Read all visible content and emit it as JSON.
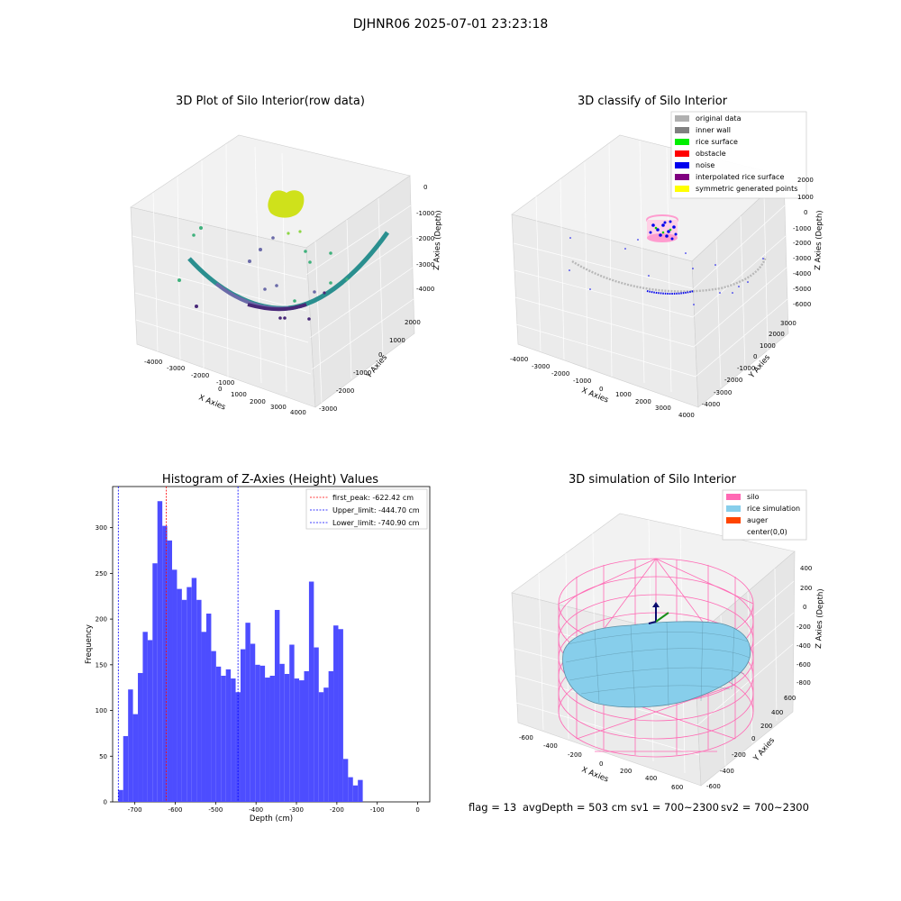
{
  "figure": {
    "suptitle": "DJHNR06 2025-07-01 23:23:18",
    "footer": {
      "flag": "flag = 13",
      "avg_depth": "avgDepth = 503 cm",
      "sv1": "sv1 = 700~2300",
      "sv2": "sv2 = 700~2300"
    }
  },
  "panels": {
    "raw": {
      "title": "3D Plot of Silo Interior(row data)",
      "xlabel": "X Axies",
      "ylabel": "Y Axies",
      "zlabel": "Z Axies (Depth)",
      "xticks": [
        "-4000",
        "-3000",
        "-2000",
        "-1000",
        "0",
        "1000",
        "2000",
        "3000",
        "4000"
      ],
      "yticks": [
        "-3000",
        "-2000",
        "-1000",
        "0",
        "1000",
        "2000"
      ],
      "zticks": [
        "0",
        "-1000",
        "-2000",
        "-3000",
        "-4000"
      ],
      "colors": {
        "arc": "#2a8f8f",
        "bottom": "#482878",
        "top": "#cfe11b"
      }
    },
    "classify": {
      "title": "3D classify of Silo Interior",
      "xlabel": "X Axies",
      "ylabel": "Y Axies",
      "zlabel": "Z Axies (Depth)",
      "xticks": [
        "-4000",
        "-3000",
        "-2000",
        "-1000",
        "0",
        "1000",
        "2000",
        "3000",
        "4000"
      ],
      "yticks": [
        "-4000",
        "-3000",
        "-2000",
        "-1000",
        "0",
        "1000",
        "2000",
        "3000"
      ],
      "zticks": [
        "2000",
        "1000",
        "0",
        "-1000",
        "-2000",
        "-3000",
        "-4000",
        "-5000",
        "-6000"
      ],
      "legend": [
        {
          "label": "original data",
          "color": "#b0b0b0"
        },
        {
          "label": "inner wall",
          "color": "#808080"
        },
        {
          "label": "rice surface",
          "color": "#00ee00"
        },
        {
          "label": "obstacle",
          "color": "#ff0000"
        },
        {
          "label": "noise",
          "color": "#0000ee"
        },
        {
          "label": "interpolated rice surface",
          "color": "#800080"
        },
        {
          "label": "symmetric generated points",
          "color": "#ffff00"
        }
      ]
    },
    "simulation": {
      "title": "3D simulation of Silo Interior",
      "xlabel": "X Axies",
      "ylabel": "Y Axies",
      "zlabel": "Z Axies (Depth)",
      "xticks": [
        "-600",
        "-400",
        "-200",
        "0",
        "200",
        "400",
        "600"
      ],
      "yticks": [
        "-600",
        "-400",
        "-200",
        "0",
        "200",
        "400",
        "600"
      ],
      "zticks": [
        "400",
        "200",
        "0",
        "-200",
        "-400",
        "-600",
        "-800"
      ],
      "legend": [
        {
          "label": "silo",
          "color": "#ff69b4"
        },
        {
          "label": "rice simulation",
          "color": "#87ceeb"
        },
        {
          "label": "auger",
          "color": "#ff4500"
        },
        {
          "label": "center(0,0)",
          "color": "#ffffff"
        }
      ]
    }
  },
  "chart_data": {
    "type": "bar",
    "title": "Histogram of Z-Axies (Height) Values",
    "xlabel": "Depth (cm)",
    "ylabel": "Frequency",
    "xlim": [
      -755,
      30
    ],
    "ylim": [
      0,
      345
    ],
    "xticks": [
      -700,
      -600,
      -500,
      -400,
      -300,
      -200,
      -100,
      0
    ],
    "yticks": [
      0,
      50,
      100,
      150,
      200,
      250,
      300
    ],
    "bar_color": "#4d4dff",
    "bin_start": -740.9,
    "bin_width": 12.1,
    "values": [
      13,
      72,
      123,
      96,
      141,
      186,
      177,
      261,
      329,
      302,
      286,
      254,
      233,
      221,
      235,
      245,
      221,
      186,
      206,
      165,
      148,
      138,
      145,
      135,
      120,
      167,
      196,
      173,
      150,
      149,
      136,
      138,
      210,
      151,
      140,
      172,
      135,
      133,
      143,
      241,
      169,
      120,
      125,
      143,
      193,
      189,
      47,
      27,
      18,
      24
    ],
    "reference_lines": [
      {
        "label": "first_peak: -622.42 cm",
        "x": -622.42,
        "color": "#ff0000"
      },
      {
        "label": "Upper_limit: -444.70 cm",
        "x": -444.7,
        "color": "#0000ff"
      },
      {
        "label": "Lower_limit: -740.90 cm",
        "x": -740.9,
        "color": "#0000ff"
      }
    ],
    "legend_position": "top-right"
  }
}
